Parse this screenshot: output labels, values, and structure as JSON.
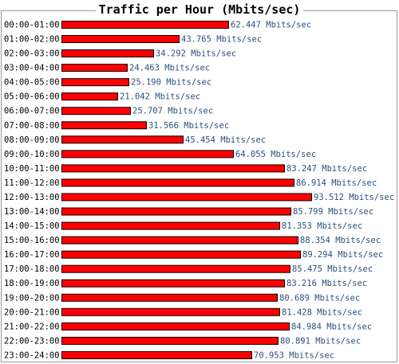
{
  "chart_data": {
    "type": "bar",
    "orientation": "horizontal",
    "title": "Traffic per Hour (Mbits/sec)",
    "unit": "Mbits/sec",
    "categories": [
      "00:00-01:00",
      "01:00-02:00",
      "02:00-03:00",
      "03:00-04:00",
      "04:00-05:00",
      "05:00-06:00",
      "06:00-07:00",
      "07:00-08:00",
      "08:00-09:00",
      "09:00-10:00",
      "10:00-11:00",
      "11:00-12:00",
      "12:00-13:00",
      "13:00-14:00",
      "14:00-15:00",
      "15:00-16:00",
      "16:00-17:00",
      "17:00-18:00",
      "18:00-19:00",
      "19:00-20:00",
      "20:00-21:00",
      "21:00-22:00",
      "22:00-23:00",
      "23:00-24:00"
    ],
    "values": [
      62.447,
      43.765,
      34.292,
      24.463,
      25.19,
      21.042,
      25.707,
      31.566,
      45.454,
      64.055,
      83.247,
      86.914,
      93.512,
      85.799,
      81.353,
      88.354,
      89.294,
      85.475,
      83.216,
      80.689,
      81.428,
      84.984,
      80.891,
      70.953
    ],
    "value_labels": [
      "62.447 Mbits/sec",
      "43.765 Mbits/sec",
      "34.292 Mbits/sec",
      "24.463 Mbits/sec",
      "25.190 Mbits/sec",
      "21.042 Mbits/sec",
      "25.707 Mbits/sec",
      "31.566 Mbits/sec",
      "45.454 Mbits/sec",
      "64.055 Mbits/sec",
      "83.247 Mbits/sec",
      "86.914 Mbits/sec",
      "93.512 Mbits/sec",
      "85.799 Mbits/sec",
      "81.353 Mbits/sec",
      "88.354 Mbits/sec",
      "89.294 Mbits/sec",
      "85.475 Mbits/sec",
      "83.216 Mbits/sec",
      "80.689 Mbits/sec",
      "81.428 Mbits/sec",
      "84.984 Mbits/sec",
      "80.891 Mbits/sec",
      "70.953 Mbits/sec"
    ],
    "colors": {
      "bar": "#ff0000",
      "bar_border": "#000000",
      "value_text": "#2c4f7c"
    }
  }
}
